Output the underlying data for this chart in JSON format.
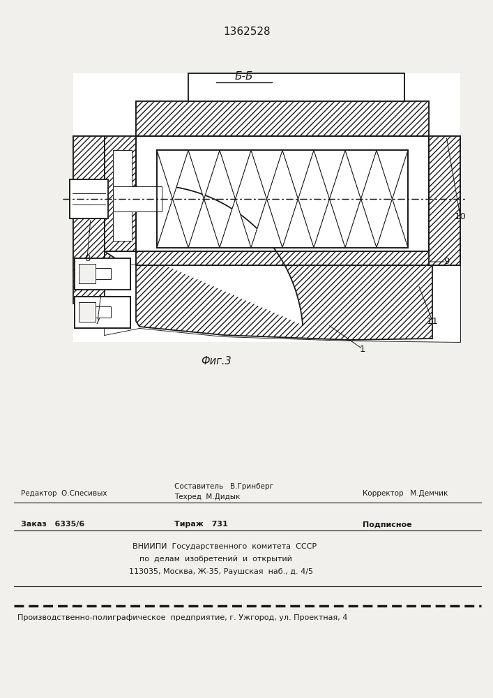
{
  "patent_number": "1362528",
  "section_label": "Б-Б",
  "fig_label": "Фиг.3",
  "bg_color": "#f2f0ed",
  "line_color": "#1a1a1a",
  "white_fill": "#ffffff",
  "footer": {
    "line0_left": "Редактор  О.Спесивых",
    "line0_center1": "Составитель   В.Гринберг",
    "line0_center2": "Техред  М.Дидык",
    "line0_right": "Корректор   М.Демчик",
    "line1_left": "Заказ   6335/6",
    "line1_center": "Тираж   731",
    "line1_right": "Подписное",
    "line2": "ВНИИПИ  Государственного  комитета  СССР",
    "line3": "по  делам  изобретений  и  открытий",
    "line4": "113035, Москва, Ж-35, Раушская  наб., д. 4/5",
    "line5": "Производственно-полиграфическое  предприятие, г. Ужгород, ул. Проектная, 4"
  }
}
